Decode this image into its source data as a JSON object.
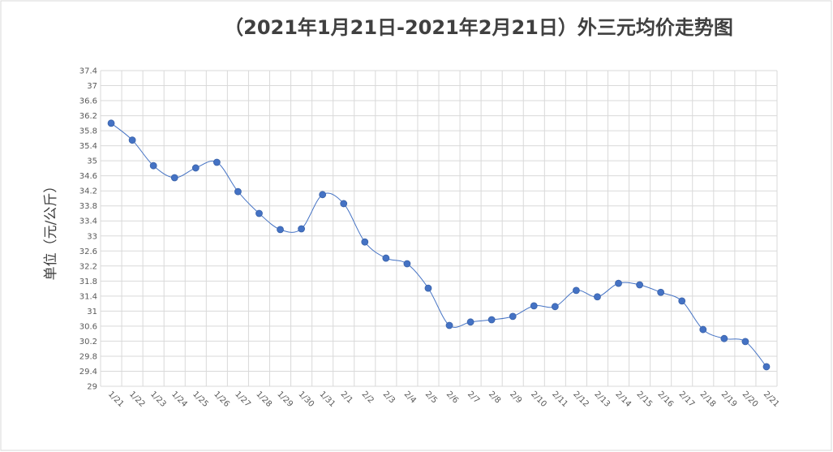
{
  "chart_data": {
    "type": "line",
    "title": "（2021年1月21日-2021年2月21日）外三元均价走势图",
    "y_label": "单位（元/公斤）",
    "categories": [
      "1/21",
      "1/22",
      "1/23",
      "1/24",
      "1/25",
      "1/26",
      "1/27",
      "1/28",
      "1/29",
      "1/30",
      "1/31",
      "2/1",
      "2/2",
      "2/3",
      "2/4",
      "2/5",
      "2/6",
      "2/7",
      "2/8",
      "2/9",
      "2/10",
      "2/11",
      "2/12",
      "2/13",
      "2/14",
      "2/15",
      "2/16",
      "2/17",
      "2/18",
      "2/19",
      "2/20",
      "2/21"
    ],
    "values": [
      36.0,
      35.55,
      34.87,
      34.55,
      34.81,
      34.96,
      34.18,
      33.6,
      33.17,
      33.19,
      34.1,
      33.86,
      32.84,
      32.41,
      32.26,
      31.61,
      30.62,
      30.71,
      30.77,
      30.86,
      31.14,
      31.12,
      31.55,
      31.38,
      31.74,
      31.7,
      31.5,
      31.27,
      30.51,
      30.27,
      30.19,
      29.52
    ],
    "color": "#4472c4",
    "ylim": [
      29,
      37.4
    ],
    "yticks": [
      29,
      29.4,
      29.8,
      30.2,
      30.6,
      31,
      31.4,
      31.8,
      32.2,
      32.6,
      33,
      33.4,
      33.8,
      34.2,
      34.6,
      35,
      35.4,
      35.8,
      36.2,
      36.6,
      37,
      37.4
    ],
    "grid": true
  }
}
